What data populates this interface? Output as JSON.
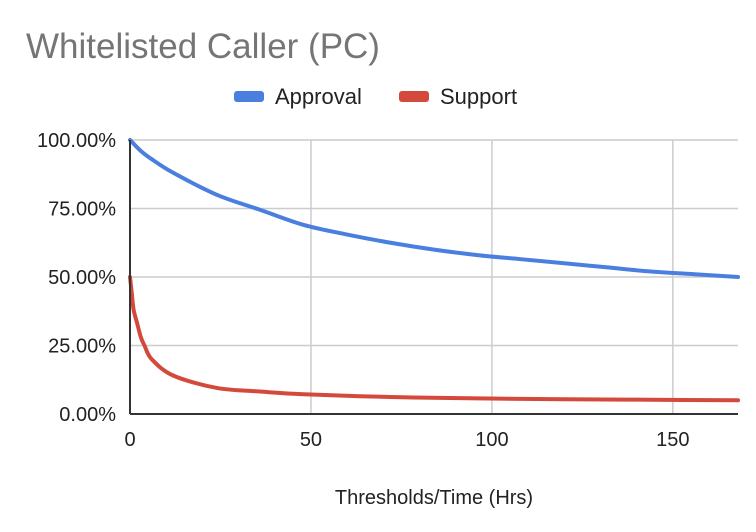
{
  "chart_data": {
    "type": "line",
    "title": "Whitelisted Caller (PC)",
    "xlabel": "Thresholds/Time (Hrs)",
    "ylabel": "",
    "xlim": [
      0,
      168
    ],
    "ylim": [
      0,
      1
    ],
    "x_ticks": [
      0,
      50,
      100,
      150
    ],
    "x_tick_labels": [
      "0",
      "50",
      "100",
      "150"
    ],
    "y_ticks": [
      0,
      0.25,
      0.5,
      0.75,
      1
    ],
    "y_tick_labels": [
      "0.00%",
      "25.00%",
      "50.00%",
      "75.00%",
      "100.00%"
    ],
    "grid": true,
    "legend_position": "top",
    "series": [
      {
        "name": "Approval",
        "color": "#4a7fe0",
        "x": [
          0,
          3,
          6,
          12,
          24,
          36,
          48,
          60,
          72,
          84,
          96,
          108,
          120,
          132,
          144,
          156,
          168
        ],
        "y": [
          1.0,
          0.96,
          0.93,
          0.88,
          0.8,
          0.745,
          0.69,
          0.655,
          0.625,
          0.6,
          0.58,
          0.565,
          0.55,
          0.535,
          0.52,
          0.51,
          0.5
        ]
      },
      {
        "name": "Support",
        "color": "#d34a3c",
        "x": [
          0,
          0.5,
          1,
          2,
          3,
          4,
          6,
          12,
          24,
          36,
          48,
          72,
          96,
          120,
          144,
          168
        ],
        "y": [
          0.5,
          0.44,
          0.38,
          0.33,
          0.28,
          0.25,
          0.2,
          0.14,
          0.095,
          0.082,
          0.072,
          0.062,
          0.057,
          0.054,
          0.052,
          0.05
        ]
      }
    ]
  }
}
